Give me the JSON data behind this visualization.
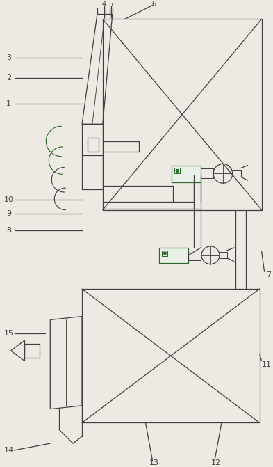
{
  "fig_width": 3.93,
  "fig_height": 6.71,
  "dpi": 100,
  "bg_color": "#ede9e3",
  "line_color": "#404040",
  "green_color": "#2a6a2a",
  "lw": 0.9
}
